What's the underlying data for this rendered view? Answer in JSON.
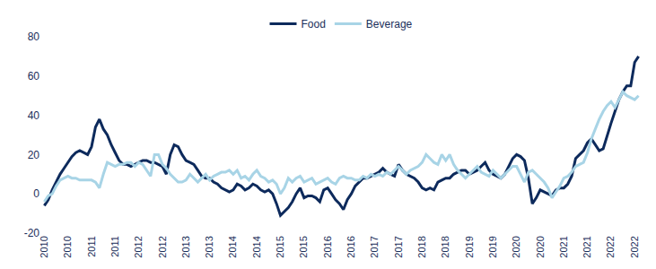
{
  "chart_data": {
    "type": "line",
    "categories": [
      "2010",
      null,
      null,
      null,
      null,
      null,
      "2010",
      null,
      null,
      null,
      null,
      null,
      "2011",
      null,
      null,
      null,
      null,
      null,
      "2011",
      null,
      null,
      null,
      null,
      null,
      "2012",
      null,
      null,
      null,
      null,
      null,
      "2012",
      null,
      null,
      null,
      null,
      null,
      "2013",
      null,
      null,
      null,
      null,
      null,
      "2013",
      null,
      null,
      null,
      null,
      null,
      "2014",
      null,
      null,
      null,
      null,
      null,
      "2014",
      null,
      null,
      null,
      null,
      null,
      "2015",
      null,
      null,
      null,
      null,
      null,
      "2015",
      null,
      null,
      null,
      null,
      null,
      "2016",
      null,
      null,
      null,
      null,
      null,
      "2016",
      null,
      null,
      null,
      null,
      null,
      "2017",
      null,
      null,
      null,
      null,
      null,
      "2017",
      null,
      null,
      null,
      null,
      null,
      "2018",
      null,
      null,
      null,
      null,
      null,
      "2018",
      null,
      null,
      null,
      null,
      null,
      "2019",
      null,
      null,
      null,
      null,
      null,
      "2019",
      null,
      null,
      null,
      null,
      null,
      "2020",
      null,
      null,
      null,
      null,
      null,
      "2020",
      null,
      null,
      null,
      null,
      null,
      "2021",
      null,
      null,
      null,
      null,
      null,
      "2021",
      null,
      null,
      null,
      null,
      null,
      "2022",
      null,
      null,
      null,
      null,
      null,
      "2022",
      null
    ],
    "series": [
      {
        "name": "Food",
        "color": "#0d2a5c",
        "values": [
          -6,
          -3,
          2,
          6,
          10,
          13,
          16,
          19,
          21,
          22,
          21,
          20,
          24,
          34,
          38,
          33,
          30,
          25,
          21,
          17,
          15,
          15,
          14,
          15,
          16,
          17,
          17,
          16,
          16,
          15,
          14,
          10,
          20,
          25,
          24,
          20,
          17,
          16,
          15,
          12,
          9,
          8,
          8,
          6,
          5,
          3,
          2,
          1,
          2,
          5,
          4,
          2,
          3,
          5,
          4,
          2,
          1,
          2,
          0,
          -5,
          -11,
          -9,
          -7,
          -4,
          0,
          3,
          -2,
          -1,
          -1,
          -2,
          -4,
          2,
          3,
          0,
          -3,
          -5,
          -8,
          -3,
          0,
          4,
          6,
          8,
          8,
          9,
          10,
          11,
          13,
          11,
          10,
          9,
          15,
          12,
          10,
          9,
          8,
          6,
          3,
          2,
          3,
          2,
          6,
          7,
          8,
          8,
          10,
          11,
          12,
          12,
          10,
          11,
          12,
          14,
          16,
          12,
          10,
          9,
          8,
          10,
          14,
          18,
          20,
          19,
          17,
          8,
          -5,
          -2,
          2,
          1,
          0,
          -1,
          2,
          3,
          3,
          5,
          9,
          18,
          20,
          22,
          26,
          28,
          25,
          22,
          23,
          30,
          36,
          42,
          48,
          52,
          55,
          55,
          67,
          70
        ]
      },
      {
        "name": "Beverage",
        "color": "#a8d4e6",
        "values": [
          -4,
          -1,
          0,
          4,
          7,
          8,
          9,
          8,
          8,
          7,
          7,
          7,
          7,
          6,
          3,
          10,
          16,
          15,
          14,
          15,
          15,
          16,
          16,
          14,
          16,
          15,
          12,
          9,
          20,
          20,
          15,
          13,
          10,
          8,
          6,
          6,
          7,
          10,
          8,
          6,
          8,
          10,
          7,
          9,
          10,
          11,
          11,
          12,
          10,
          12,
          8,
          9,
          7,
          10,
          12,
          9,
          8,
          6,
          7,
          5,
          0,
          3,
          8,
          6,
          8,
          9,
          6,
          7,
          8,
          5,
          6,
          7,
          8,
          6,
          5,
          8,
          9,
          8,
          8,
          7,
          7,
          9,
          8,
          10,
          9,
          10,
          9,
          11,
          10,
          12,
          14,
          12,
          10,
          12,
          13,
          14,
          16,
          20,
          18,
          16,
          15,
          20,
          17,
          20,
          15,
          12,
          10,
          8,
          10,
          12,
          14,
          11,
          10,
          9,
          12,
          10,
          8,
          10,
          12,
          14,
          14,
          10,
          6,
          11,
          12,
          10,
          8,
          6,
          3,
          -2,
          1,
          4,
          8,
          9,
          11,
          14,
          15,
          16,
          21,
          28,
          33,
          38,
          42,
          45,
          47,
          44,
          48,
          52,
          50,
          49,
          48,
          50
        ]
      }
    ],
    "ylim": [
      -20,
      80
    ],
    "yticks": [
      -20,
      0,
      20,
      40,
      60,
      80
    ],
    "grid": false,
    "legend": "top"
  }
}
